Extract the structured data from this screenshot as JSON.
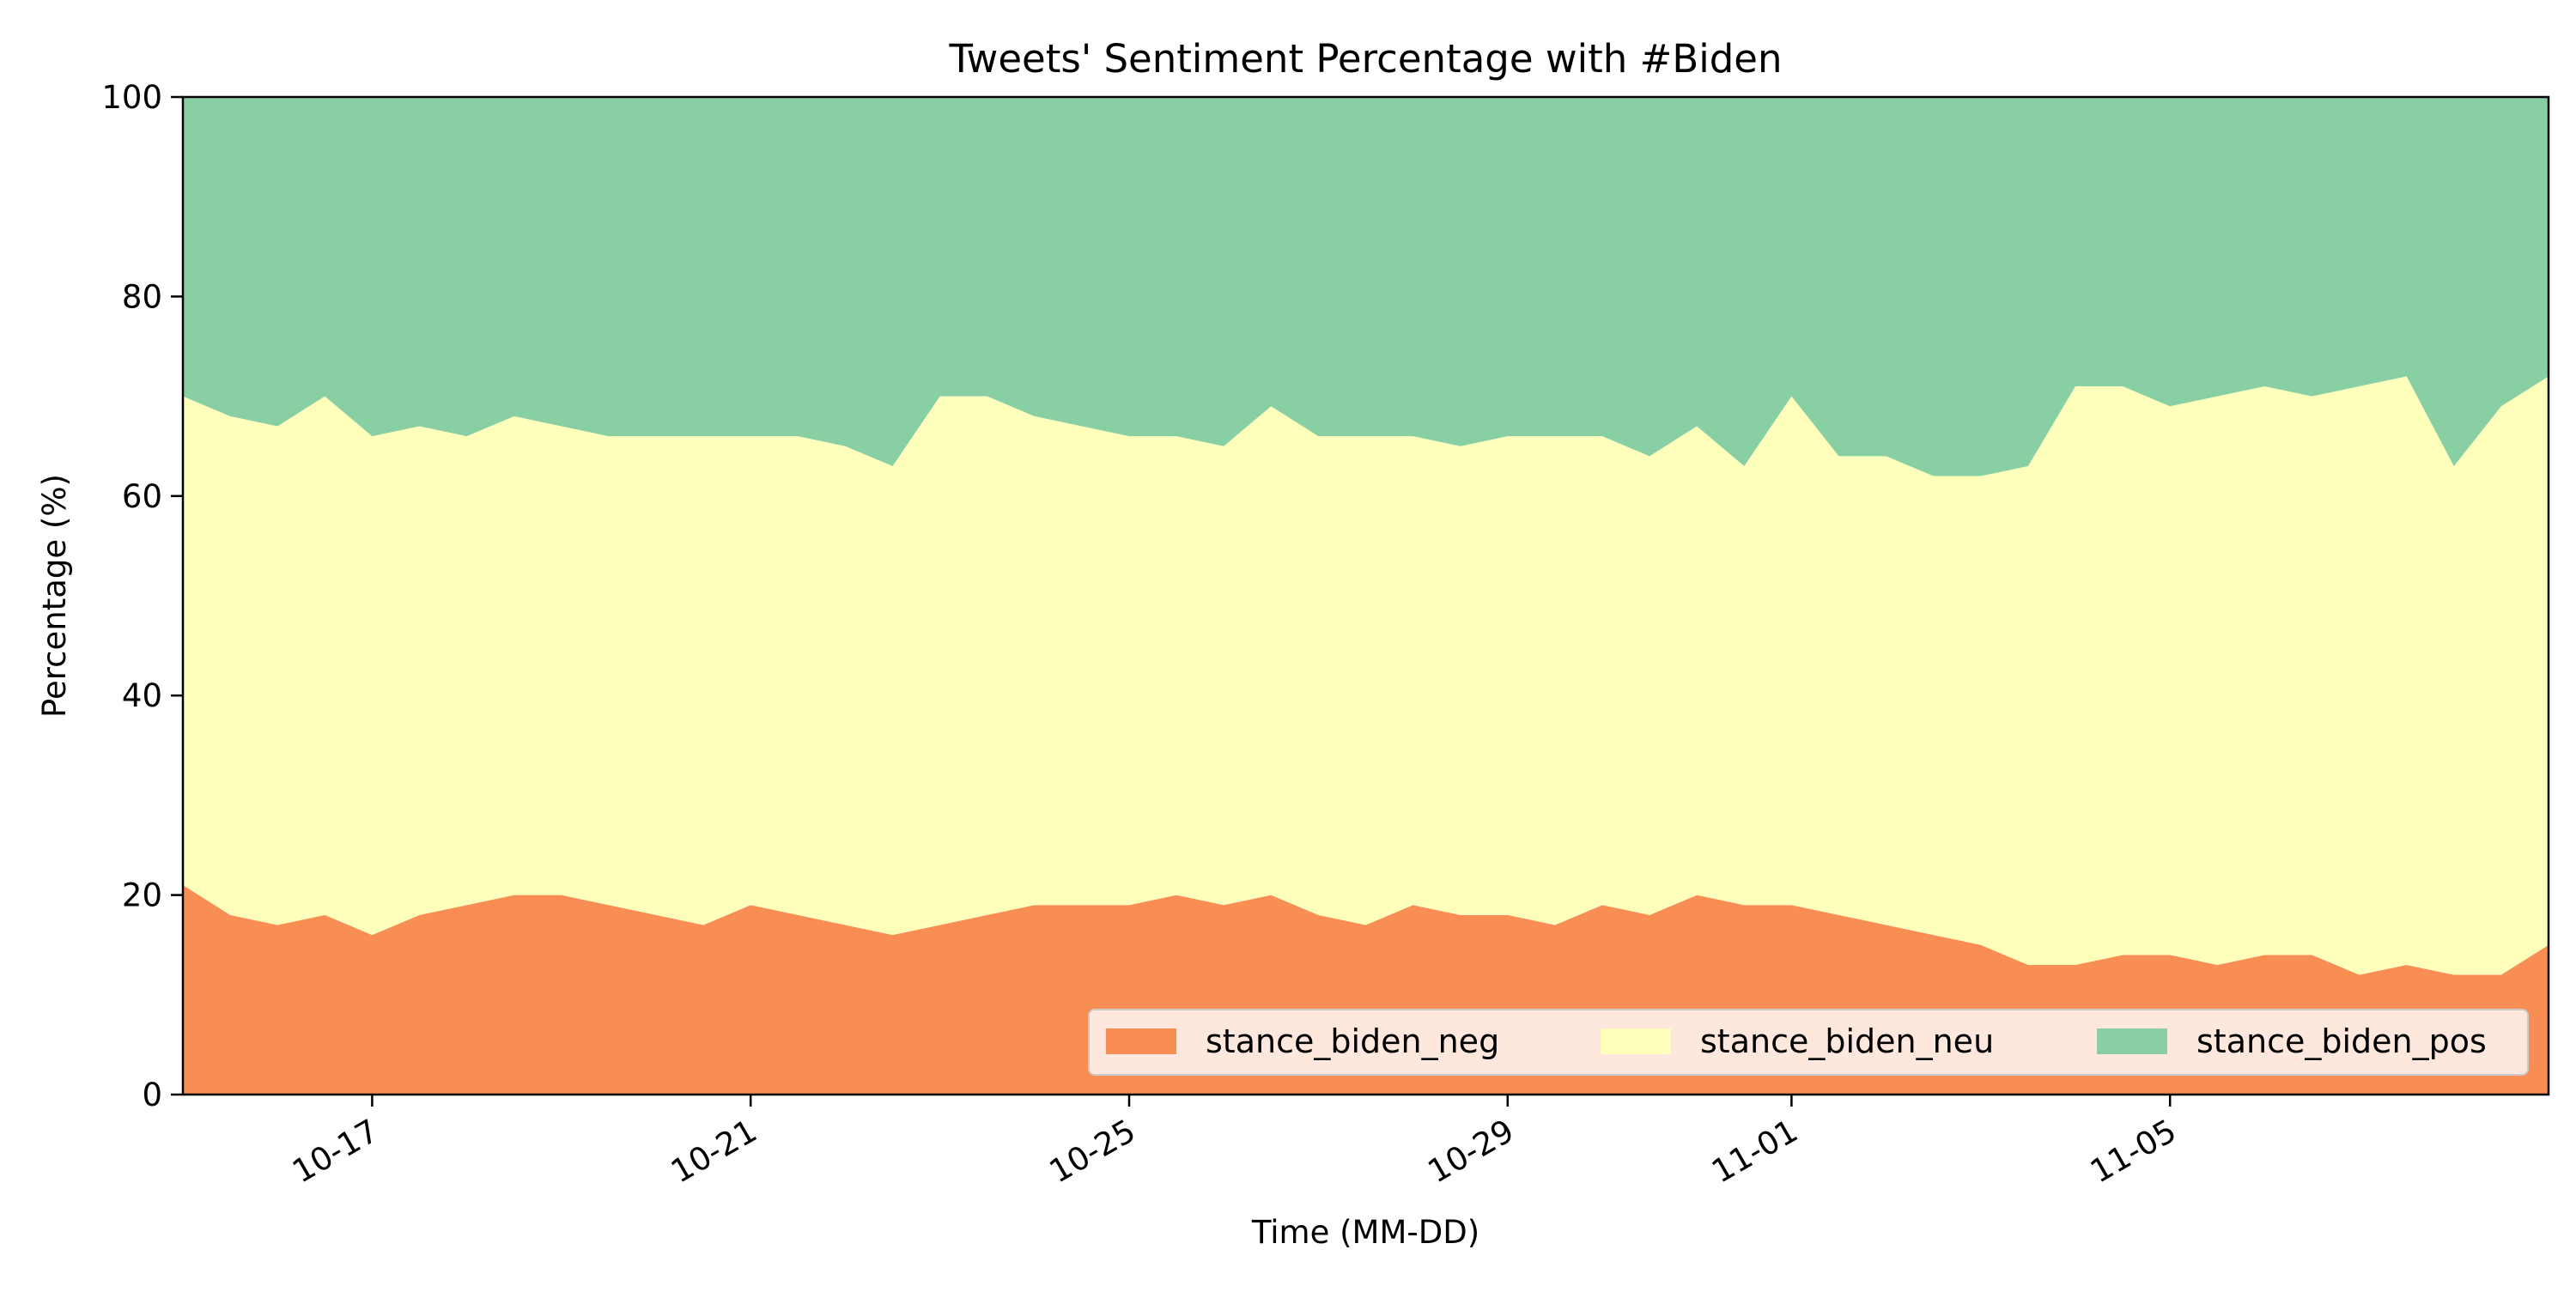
{
  "chart_data": {
    "type": "area",
    "stacked": true,
    "title": "Tweets' Sentiment Percentage with #Biden",
    "xlabel": "Time (MM-DD)",
    "ylabel": "Percentage (%)",
    "ylim": [
      0,
      100
    ],
    "xlim": [
      "2020-10-15T00:00",
      "2020-11-09T00:00"
    ],
    "yticks": [
      0,
      20,
      40,
      60,
      80,
      100
    ],
    "xticks": [
      {
        "date": "2020-10-17",
        "label": "10-17"
      },
      {
        "date": "2020-10-21",
        "label": "10-21"
      },
      {
        "date": "2020-10-25",
        "label": "10-25"
      },
      {
        "date": "2020-10-29",
        "label": "10-29"
      },
      {
        "date": "2020-11-01",
        "label": "11-01"
      },
      {
        "date": "2020-11-05",
        "label": "11-05"
      }
    ],
    "grid": false,
    "legend_position": "lower-right",
    "legend_ncol": 3,
    "x": [
      "2020-10-15T00:00",
      "2020-10-15T12:00",
      "2020-10-16T00:00",
      "2020-10-16T12:00",
      "2020-10-17T00:00",
      "2020-10-17T12:00",
      "2020-10-18T00:00",
      "2020-10-18T12:00",
      "2020-10-19T00:00",
      "2020-10-19T12:00",
      "2020-10-20T00:00",
      "2020-10-20T12:00",
      "2020-10-21T00:00",
      "2020-10-21T12:00",
      "2020-10-22T00:00",
      "2020-10-22T12:00",
      "2020-10-23T00:00",
      "2020-10-23T12:00",
      "2020-10-24T00:00",
      "2020-10-24T12:00",
      "2020-10-25T00:00",
      "2020-10-25T12:00",
      "2020-10-26T00:00",
      "2020-10-26T12:00",
      "2020-10-27T00:00",
      "2020-10-27T12:00",
      "2020-10-28T00:00",
      "2020-10-28T12:00",
      "2020-10-29T00:00",
      "2020-10-29T12:00",
      "2020-10-30T00:00",
      "2020-10-30T12:00",
      "2020-10-31T00:00",
      "2020-10-31T12:00",
      "2020-11-01T00:00",
      "2020-11-01T12:00",
      "2020-11-02T00:00",
      "2020-11-02T12:00",
      "2020-11-03T00:00",
      "2020-11-03T12:00",
      "2020-11-04T00:00",
      "2020-11-04T12:00",
      "2020-11-05T00:00",
      "2020-11-05T12:00",
      "2020-11-06T00:00",
      "2020-11-06T12:00",
      "2020-11-07T00:00",
      "2020-11-07T12:00",
      "2020-11-08T00:00",
      "2020-11-08T12:00",
      "2020-11-09T00:00"
    ],
    "series": [
      {
        "name": "stance_biden_neg",
        "color": "#f88e54",
        "values": [
          21,
          18,
          17,
          18,
          16,
          18,
          19,
          20,
          20,
          19,
          18,
          17,
          19,
          18,
          17,
          16,
          17,
          18,
          19,
          19,
          19,
          20,
          19,
          20,
          18,
          17,
          19,
          18,
          18,
          17,
          19,
          18,
          20,
          19,
          19,
          18,
          17,
          16,
          15,
          13,
          13,
          14,
          14,
          13,
          14,
          14,
          12,
          13,
          12,
          12,
          15
        ]
      },
      {
        "name": "stance_biden_neu",
        "color": "#ffffbc",
        "values": [
          49,
          50,
          50,
          52,
          50,
          49,
          47,
          48,
          47,
          47,
          48,
          49,
          47,
          48,
          48,
          47,
          53,
          52,
          49,
          48,
          47,
          46,
          46,
          49,
          48,
          49,
          47,
          47,
          48,
          49,
          47,
          46,
          47,
          44,
          51,
          46,
          47,
          46,
          47,
          50,
          58,
          57,
          55,
          57,
          57,
          56,
          59,
          59,
          51,
          57,
          57
        ]
      },
      {
        "name": "stance_biden_pos",
        "color": "#88cfa4",
        "values": [
          30,
          32,
          33,
          30,
          34,
          33,
          34,
          32,
          33,
          34,
          34,
          34,
          34,
          34,
          35,
          37,
          30,
          30,
          32,
          33,
          34,
          34,
          35,
          31,
          34,
          34,
          34,
          35,
          34,
          34,
          34,
          36,
          33,
          37,
          30,
          36,
          36,
          38,
          38,
          37,
          29,
          29,
          31,
          30,
          29,
          30,
          29,
          28,
          37,
          31,
          28
        ]
      }
    ]
  }
}
